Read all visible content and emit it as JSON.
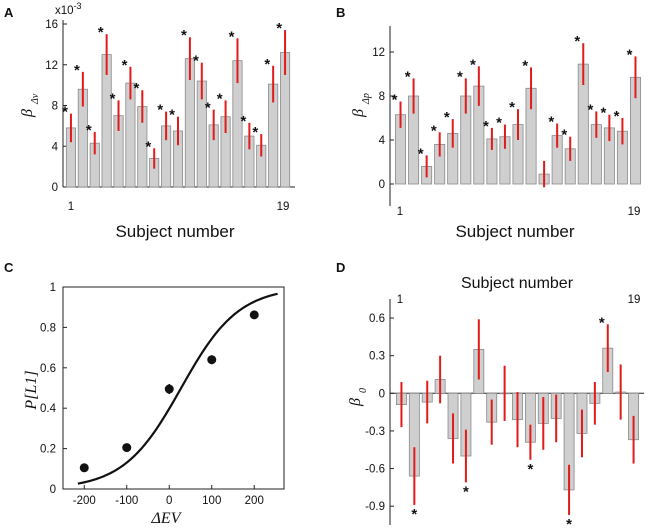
{
  "chart_data": [
    {
      "panel": "A",
      "type": "bar",
      "ylabel_main": "β",
      "ylabel_sub": "Δv",
      "xlabel": "Subject number",
      "y_exponent": "x10",
      "y_exponent_power": "-3",
      "x_tick_first": "1",
      "x_tick_last": "19",
      "yticks": [
        0,
        4,
        8,
        12,
        16
      ],
      "ytick_labels": [
        "0",
        "4",
        "8",
        "12",
        "16"
      ],
      "ylim": [
        0,
        16
      ],
      "values": [
        5.8,
        9.6,
        4.3,
        13.0,
        7.0,
        10.2,
        7.9,
        2.8,
        6.0,
        5.5,
        12.6,
        10.4,
        6.1,
        6.9,
        12.4,
        5.0,
        4.1,
        10.1,
        13.2
      ],
      "errors": [
        1.4,
        1.7,
        1.1,
        2.0,
        1.5,
        1.6,
        1.6,
        1.0,
        1.4,
        1.4,
        2.1,
        1.8,
        1.5,
        1.6,
        2.2,
        1.3,
        1.1,
        1.8,
        2.2
      ],
      "significant": [
        true,
        true,
        true,
        true,
        true,
        true,
        true,
        true,
        true,
        true,
        true,
        true,
        true,
        true,
        true,
        true,
        true,
        true,
        true
      ],
      "star": "*"
    },
    {
      "panel": "B",
      "type": "bar",
      "ylabel_main": "β",
      "ylabel_sub": "Δp",
      "xlabel": "Subject number",
      "x_tick_first": "1",
      "x_tick_last": "19",
      "yticks": [
        0,
        4,
        8,
        12
      ],
      "ytick_labels": [
        "0",
        "4",
        "8",
        "12"
      ],
      "ylim": [
        -2,
        14
      ],
      "values": [
        6.3,
        8.0,
        1.6,
        3.6,
        4.6,
        8.0,
        8.9,
        4.1,
        4.3,
        5.4,
        8.7,
        0.9,
        4.4,
        3.2,
        10.9,
        5.4,
        5.1,
        4.8,
        9.7
      ],
      "errors": [
        1.2,
        1.6,
        1.0,
        1.1,
        1.3,
        1.6,
        1.8,
        1.0,
        1.1,
        1.4,
        1.9,
        1.2,
        1.1,
        1.1,
        1.9,
        1.2,
        1.2,
        1.2,
        1.9
      ],
      "significant": [
        true,
        true,
        true,
        true,
        true,
        true,
        true,
        true,
        true,
        true,
        true,
        false,
        true,
        true,
        true,
        true,
        true,
        true,
        true
      ],
      "star": "*"
    },
    {
      "panel": "C",
      "type": "scatter",
      "xlabel": "ΔEV",
      "ylabel": "P[L1]",
      "xticks": [
        -200,
        -100,
        0,
        100,
        200
      ],
      "xtick_labels": [
        "-200",
        "-100",
        "0",
        "100",
        "200"
      ],
      "yticks": [
        0,
        0.2,
        0.4,
        0.6,
        0.8,
        1
      ],
      "ytick_labels": [
        "0",
        "0.2",
        "0.4",
        "0.6",
        "0.8",
        "1"
      ],
      "xlim": [
        -250,
        270
      ],
      "ylim": [
        0,
        1
      ],
      "points": [
        {
          "x": -200,
          "y": 0.105,
          "err": 0.012
        },
        {
          "x": -100,
          "y": 0.205,
          "err": 0.015
        },
        {
          "x": 0,
          "y": 0.495,
          "err": 0.025
        },
        {
          "x": 100,
          "y": 0.64,
          "err": 0.022
        },
        {
          "x": 200,
          "y": 0.862,
          "err": 0.012
        }
      ],
      "fit": {
        "type": "logistic",
        "x0": 28,
        "k": 0.0148,
        "xmin": -215,
        "xmax": 255
      }
    },
    {
      "panel": "D",
      "type": "bar",
      "title": "Subject number",
      "ylabel_main": "β",
      "ylabel_sub": "0",
      "x_tick_first": "1",
      "x_tick_last": "19",
      "yticks": [
        0.6,
        0.3,
        0,
        -0.3,
        -0.6,
        -0.9
      ],
      "ytick_labels": [
        "0.6",
        "0.3",
        "0",
        "-0.3",
        "-0.6",
        "-0.9"
      ],
      "ylim": [
        -1.05,
        0.72
      ],
      "values": [
        -0.09,
        -0.66,
        -0.07,
        0.11,
        -0.36,
        -0.5,
        0.35,
        -0.23,
        0.0,
        -0.21,
        -0.39,
        -0.24,
        -0.2,
        -0.77,
        -0.32,
        -0.08,
        0.36,
        0.01,
        -0.37
      ],
      "errors": [
        0.18,
        0.23,
        0.17,
        0.19,
        0.2,
        0.21,
        0.24,
        0.18,
        0.22,
        0.22,
        0.14,
        0.21,
        0.19,
        0.2,
        0.19,
        0.17,
        0.19,
        0.22,
        0.19
      ],
      "significant": [
        false,
        true,
        false,
        false,
        false,
        true,
        false,
        false,
        false,
        false,
        true,
        false,
        false,
        true,
        false,
        false,
        true,
        false,
        false
      ],
      "star": "*"
    }
  ],
  "panel_letters": [
    "A",
    "B",
    "C",
    "D"
  ]
}
